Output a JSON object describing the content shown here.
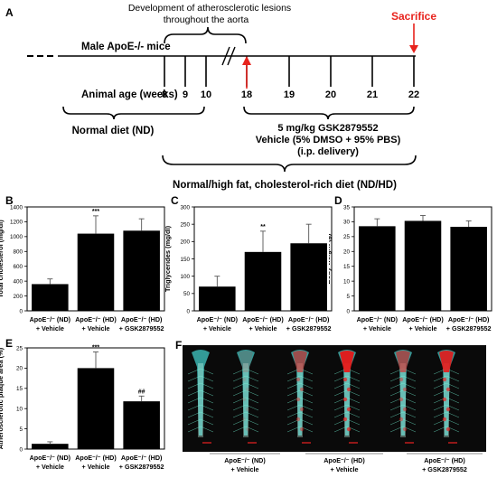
{
  "panel_a": {
    "label": "A",
    "lesion_text_1": "Development of atherosclerotic lesions",
    "lesion_text_2": "throughout the aorta",
    "sacrifice": "Sacrifice",
    "mice": "Male ApoE-/- mice",
    "age_label": "Animal age (weeks)",
    "ages": [
      "8",
      "9",
      "10",
      "18",
      "19",
      "20",
      "21",
      "22"
    ],
    "normal_diet": "Normal diet (ND)",
    "treatment_1": "5 mg/kg GSK2879552",
    "treatment_2": "Vehicle (5% DMSO + 95% PBS)",
    "treatment_3": "(i.p. delivery)",
    "hf_diet": "Normal/high fat, cholesterol-rich diet (ND/HD)",
    "colors": {
      "red": "#e8231d",
      "black": "#000000"
    }
  },
  "groups": [
    {
      "line1": "ApoE⁻/⁻ (ND)",
      "line2": "+ Vehicle"
    },
    {
      "line1": "ApoE⁻/⁻ (HD)",
      "line2": "+ Vehicle"
    },
    {
      "line1": "ApoE⁻/⁻ (HD)",
      "line2": "+ GSK2879552"
    }
  ],
  "chart_data": [
    {
      "id": "B",
      "type": "bar",
      "label": "B",
      "ylabel": "Total cholesterol (mg/dl)",
      "ylim": [
        0,
        1400
      ],
      "yticks": [
        0,
        200,
        400,
        600,
        800,
        1000,
        1200,
        1400
      ],
      "values": [
        360,
        1040,
        1080
      ],
      "errors": [
        70,
        240,
        160
      ],
      "annotations": [
        "",
        "***",
        ""
      ]
    },
    {
      "id": "C",
      "type": "bar",
      "label": "C",
      "ylabel": "Triglycerides (mg/dl)",
      "ylim": [
        0,
        300
      ],
      "yticks": [
        0,
        50,
        100,
        150,
        200,
        250,
        300
      ],
      "values": [
        70,
        170,
        195
      ],
      "errors": [
        30,
        60,
        55
      ],
      "annotations": [
        "",
        "**",
        ""
      ]
    },
    {
      "id": "D",
      "type": "bar",
      "label": "D",
      "ylabel": "Body weight (g)",
      "ylim": [
        0,
        35
      ],
      "yticks": [
        0,
        5,
        10,
        15,
        20,
        25,
        30,
        35
      ],
      "values": [
        28.5,
        30.3,
        28.3
      ],
      "errors": [
        2.5,
        1.8,
        2.0
      ],
      "annotations": [
        "",
        "",
        ""
      ]
    },
    {
      "id": "E",
      "type": "bar",
      "label": "E",
      "ylabel": "Atherosclerotic plaque area (%)",
      "ylim": [
        0,
        25
      ],
      "yticks": [
        0,
        5,
        10,
        15,
        20,
        25
      ],
      "values": [
        1.3,
        20.0,
        11.8
      ],
      "errors": [
        0.5,
        4.0,
        1.3
      ],
      "annotations": [
        "",
        "***",
        "##"
      ]
    }
  ],
  "panel_f": {
    "label": "F"
  }
}
